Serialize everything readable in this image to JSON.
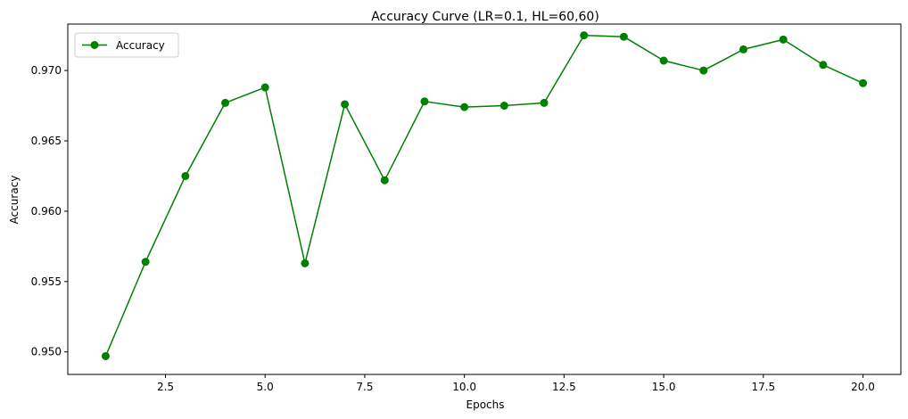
{
  "chart_data": {
    "type": "line",
    "title": "Accuracy Curve (LR=0.1, HL=60,60)",
    "xlabel": "Epochs",
    "ylabel": "Accuracy",
    "xlim": [
      0.05,
      20.95
    ],
    "ylim": [
      0.9484,
      0.9733
    ],
    "x_ticks": [
      2.5,
      5.0,
      7.5,
      10.0,
      12.5,
      15.0,
      17.5,
      20.0
    ],
    "x_tick_labels": [
      "2.5",
      "5.0",
      "7.5",
      "10.0",
      "12.5",
      "15.0",
      "17.5",
      "20.0"
    ],
    "y_ticks": [
      0.95,
      0.955,
      0.96,
      0.965,
      0.97
    ],
    "y_tick_labels": [
      "0.950",
      "0.955",
      "0.960",
      "0.965",
      "0.970"
    ],
    "grid": false,
    "legend_position": "upper-left",
    "series": [
      {
        "name": "Accuracy",
        "color": "#008000",
        "marker": "circle",
        "x": [
          1,
          2,
          3,
          4,
          5,
          6,
          7,
          8,
          9,
          10,
          11,
          12,
          13,
          14,
          15,
          16,
          17,
          18,
          19,
          20
        ],
        "y": [
          0.9497,
          0.9564,
          0.9625,
          0.9677,
          0.9688,
          0.9563,
          0.9676,
          0.9622,
          0.9678,
          0.9674,
          0.9675,
          0.9677,
          0.9725,
          0.9724,
          0.9707,
          0.97,
          0.9715,
          0.9722,
          0.9704,
          0.9691
        ]
      }
    ]
  }
}
